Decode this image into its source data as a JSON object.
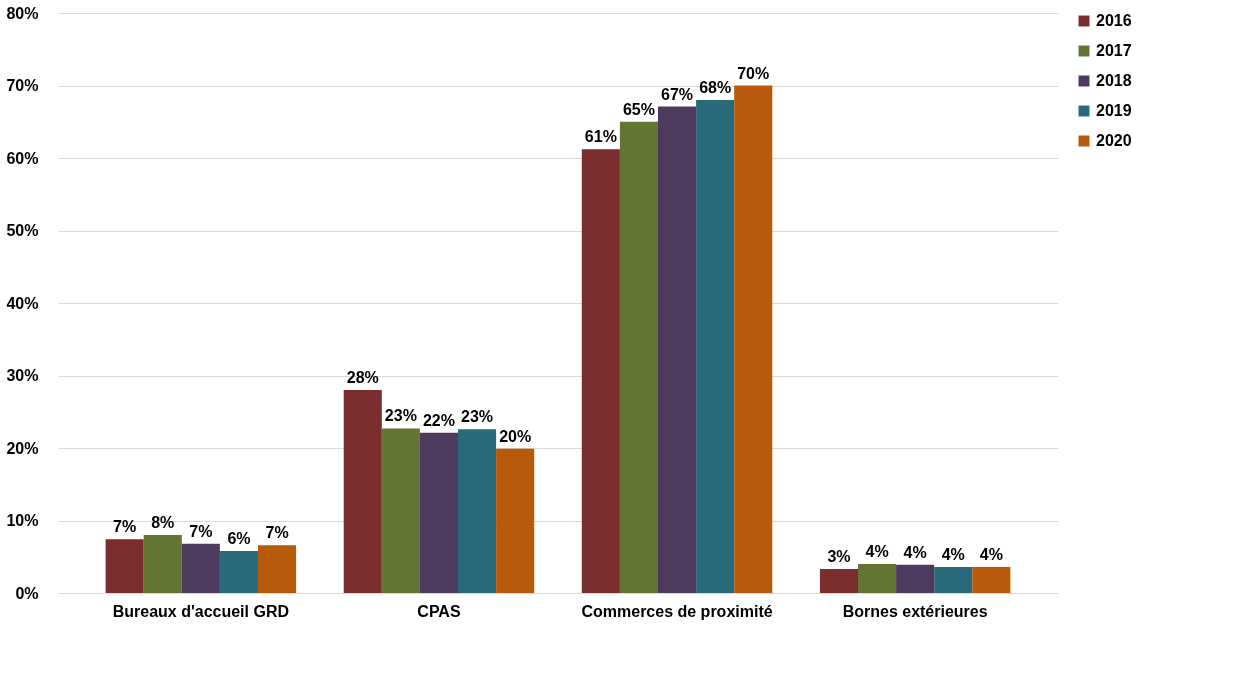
{
  "chart_data": {
    "type": "bar",
    "categories": [
      "Bureaux d'accueil GRD",
      "CPAS",
      "Commerces de proximité",
      "Bornes extérieures"
    ],
    "series": [
      {
        "name": "2016",
        "color": "#7b2c2c",
        "values": [
          7.4,
          28.0,
          61.2,
          3.3
        ],
        "value_labels": [
          "7%",
          "28%",
          "61%",
          "3%"
        ]
      },
      {
        "name": "2017",
        "color": "#627532",
        "values": [
          8.0,
          22.7,
          65.0,
          4.0
        ],
        "value_labels": [
          "8%",
          "23%",
          "65%",
          "4%"
        ]
      },
      {
        "name": "2018",
        "color": "#4e3a5e",
        "values": [
          6.8,
          22.1,
          67.1,
          3.9
        ],
        "value_labels": [
          "7%",
          "22%",
          "67%",
          "4%"
        ]
      },
      {
        "name": "2019",
        "color": "#286a7a",
        "values": [
          5.8,
          22.6,
          68.0,
          3.6
        ],
        "value_labels": [
          "6%",
          "23%",
          "68%",
          "4%"
        ]
      },
      {
        "name": "2020",
        "color": "#b85a0a",
        "values": [
          6.6,
          19.9,
          70.0,
          3.6
        ],
        "value_labels": [
          "7%",
          "20%",
          "70%",
          "4%"
        ]
      }
    ],
    "ylim": [
      0,
      80
    ],
    "yticks": [
      {
        "value": 0,
        "label": "0%"
      },
      {
        "value": 10,
        "label": "10%"
      },
      {
        "value": 20,
        "label": "20%"
      },
      {
        "value": 30,
        "label": "30%"
      },
      {
        "value": 40,
        "label": "40%"
      },
      {
        "value": 50,
        "label": "50%"
      },
      {
        "value": 60,
        "label": "60%"
      },
      {
        "value": 70,
        "label": "70%"
      },
      {
        "value": 80,
        "label": "80%"
      }
    ],
    "grid": "y",
    "legend": "right"
  }
}
